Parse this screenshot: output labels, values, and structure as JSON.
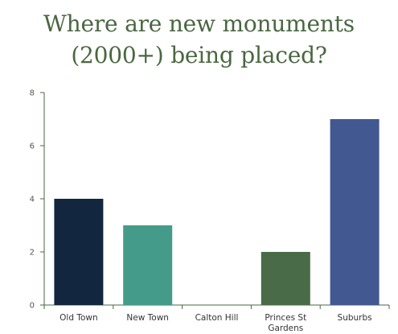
{
  "chart_data": {
    "type": "bar",
    "title_lines": [
      "Where are new monuments",
      "(2000+) being placed?"
    ],
    "categories": [
      [
        "Old Town"
      ],
      [
        "New Town"
      ],
      [
        "Calton Hill"
      ],
      [
        "Princes St",
        "Gardens"
      ],
      [
        "Suburbs"
      ]
    ],
    "values": [
      4,
      3,
      0,
      2,
      7
    ],
    "bar_colors": [
      "#12263f",
      "#449b89",
      "#449b89",
      "#4a6b47",
      "#425891"
    ],
    "ylim": [
      0,
      8
    ],
    "yticks": [
      0,
      2,
      4,
      6,
      8
    ],
    "grid": false,
    "legend": "none",
    "colors": {
      "title": "#4a6741",
      "axis": "#4a6741"
    }
  }
}
